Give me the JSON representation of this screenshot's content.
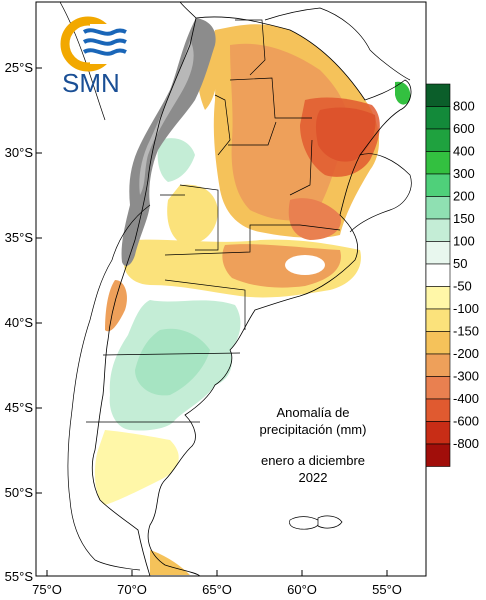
{
  "logo": {
    "text": "SMN"
  },
  "annotation": {
    "line1": "Anomalía de",
    "line2": "precipitación (mm)",
    "line3": "enero a diciembre",
    "line4": "2022"
  },
  "lat_ticks": [
    "25°S",
    "30°S",
    "35°S",
    "40°S",
    "45°S",
    "50°S",
    "55°S"
  ],
  "lon_ticks": [
    "75°O",
    "70°O",
    "65°O",
    "60°O",
    "55°O"
  ],
  "legend": [
    {
      "label": "800",
      "color": "#0b5e2a"
    },
    {
      "label": "600",
      "color": "#138a3a"
    },
    {
      "label": "400",
      "color": "#1fa23f"
    },
    {
      "label": "300",
      "color": "#33c040"
    },
    {
      "label": "200",
      "color": "#4fd07a"
    },
    {
      "label": "150",
      "color": "#8fe0b2"
    },
    {
      "label": "100",
      "color": "#c4edd6"
    },
    {
      "label": "50",
      "color": "#e8f7ee"
    },
    {
      "label": "-50",
      "color": "#ffffff"
    },
    {
      "label": "-100",
      "color": "#fff7a8"
    },
    {
      "label": "-150",
      "color": "#fbe27b"
    },
    {
      "label": "-200",
      "color": "#f5c25a"
    },
    {
      "label": "-300",
      "color": "#eea05a"
    },
    {
      "label": "-400",
      "color": "#e98050"
    },
    {
      "label": "-600",
      "color": "#e05a30"
    },
    {
      "label": "-800",
      "color": "#c82d16"
    },
    {
      "label": "",
      "color": "#a10e0a"
    }
  ]
}
